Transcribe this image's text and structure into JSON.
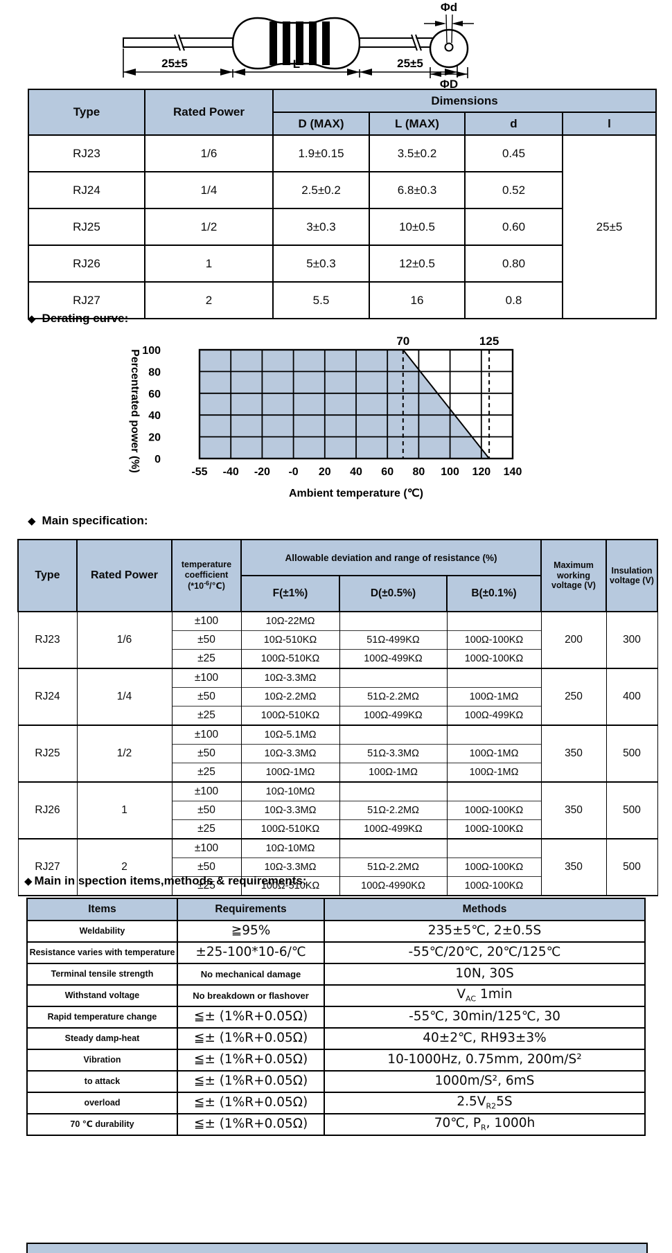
{
  "colors": {
    "header_bg": "#b7c9de",
    "chart_fill": "#b9c9dd",
    "line": "#000000"
  },
  "diagram": {
    "dim_left": "25±5",
    "dim_body": "L",
    "dim_right": "25±5",
    "phi_d": "Φd",
    "phi_D": "ΦD"
  },
  "dimensions_table": {
    "headers": {
      "type": "Type",
      "rated_power": "Rated Power",
      "dimensions": "Dimensions",
      "d_max": "D (MAX)",
      "l_max": "L (MAX)",
      "d": "d",
      "l": "l"
    },
    "rows": [
      {
        "type": "RJ23",
        "power": "1/6",
        "d_max": "1.9±0.15",
        "l_max": "3.5±0.2",
        "d": "0.45"
      },
      {
        "type": "RJ24",
        "power": "1/4",
        "d_max": "2.5±0.2",
        "l_max": "6.8±0.3",
        "d": "0.52"
      },
      {
        "type": "RJ25",
        "power": "1/2",
        "d_max": "3±0.3",
        "l_max": "10±0.5",
        "d": "0.60"
      },
      {
        "type": "RJ26",
        "power": "1",
        "d_max": "5±0.3",
        "l_max": "12±0.5",
        "d": "0.80"
      },
      {
        "type": "RJ27",
        "power": "2",
        "d_max": "5.5",
        "l_max": "16",
        "d": "0.8"
      }
    ],
    "lead_length": "25±5"
  },
  "derating": {
    "bullet": "◆",
    "heading": "Derating curve:",
    "chart_data": {
      "type": "area",
      "xlabel": "Ambient temperature (℃)",
      "ylabel": "Percentrated power (%)",
      "x_tick_labels": [
        "-55",
        "-40",
        "-20",
        "-0",
        "20",
        "40",
        "60",
        "80",
        "100",
        "120",
        "140"
      ],
      "x_tick_values": [
        -55,
        -40,
        -20,
        0,
        20,
        40,
        60,
        80,
        100,
        120,
        140
      ],
      "y_ticks": [
        0,
        20,
        40,
        60,
        80,
        100
      ],
      "ylim": [
        0,
        100
      ],
      "grid": true,
      "fill_color": "#b9c9dd",
      "series": [
        {
          "name": "derating-limit",
          "points": [
            [
              -55,
              100
            ],
            [
              70,
              100
            ],
            [
              125,
              0
            ]
          ]
        }
      ],
      "annotations": [
        {
          "x": 70,
          "label": "70"
        },
        {
          "x": 125,
          "label": "125"
        }
      ]
    }
  },
  "spec": {
    "bullet": "◆",
    "heading": "Main specification:",
    "headers": {
      "type": "Type",
      "rated_power": "Rated Power",
      "tc_line1": "temperature",
      "tc_line2": "coefficient",
      "tc_base": "(*10",
      "tc_sup": "-6",
      "tc_tail": "/℃)",
      "deviation": "Allowable deviation and range of resistance (%)",
      "f": "F(±1%)",
      "d": "D(±0.5%)",
      "b": "B(±0.1%)",
      "max_v": "Maximum working voltage (V)",
      "insulation": "Insulation voltage (V)"
    },
    "groups": [
      {
        "type": "RJ23",
        "power": "1/6",
        "max_v": "200",
        "insulation": "300",
        "rows": [
          {
            "tc": "±100",
            "f": "10Ω-22MΩ",
            "d": "",
            "b": ""
          },
          {
            "tc": "±50",
            "f": "10Ω-510KΩ",
            "d": "51Ω-499KΩ",
            "b": "100Ω-100KΩ"
          },
          {
            "tc": "±25",
            "f": "100Ω-510KΩ",
            "d": "100Ω-499KΩ",
            "b": "100Ω-100KΩ"
          }
        ]
      },
      {
        "type": "RJ24",
        "power": "1/4",
        "max_v": "250",
        "insulation": "400",
        "rows": [
          {
            "tc": "±100",
            "f": "10Ω-3.3MΩ",
            "d": "",
            "b": ""
          },
          {
            "tc": "±50",
            "f": "10Ω-2.2MΩ",
            "d": "51Ω-2.2MΩ",
            "b": "100Ω-1MΩ"
          },
          {
            "tc": "±25",
            "f": "100Ω-510KΩ",
            "d": "100Ω-499KΩ",
            "b": "100Ω-499KΩ"
          }
        ]
      },
      {
        "type": "RJ25",
        "power": "1/2",
        "max_v": "350",
        "insulation": "500",
        "rows": [
          {
            "tc": "±100",
            "f": "10Ω-5.1MΩ",
            "d": "",
            "b": ""
          },
          {
            "tc": "±50",
            "f": "10Ω-3.3MΩ",
            "d": "51Ω-3.3MΩ",
            "b": "100Ω-1MΩ"
          },
          {
            "tc": "±25",
            "f": "100Ω-1MΩ",
            "d": "100Ω-1MΩ",
            "b": "100Ω-1MΩ"
          }
        ]
      },
      {
        "type": "RJ26",
        "power": "1",
        "max_v": "350",
        "insulation": "500",
        "rows": [
          {
            "tc": "±100",
            "f": "10Ω-10MΩ",
            "d": "",
            "b": ""
          },
          {
            "tc": "±50",
            "f": "10Ω-3.3MΩ",
            "d": "51Ω-2.2MΩ",
            "b": "100Ω-100KΩ"
          },
          {
            "tc": "±25",
            "f": "100Ω-510KΩ",
            "d": "100Ω-499KΩ",
            "b": "100Ω-100KΩ"
          }
        ]
      },
      {
        "type": "RJ27",
        "power": "2",
        "max_v": "350",
        "insulation": "500",
        "rows": [
          {
            "tc": "±100",
            "f": "10Ω-10MΩ",
            "d": "",
            "b": ""
          },
          {
            "tc": "±50",
            "f": "10Ω-3.3MΩ",
            "d": "51Ω-2.2MΩ",
            "b": "100Ω-100KΩ"
          },
          {
            "tc": "±25",
            "f": "100Ω-510KΩ",
            "d": "100Ω-4990KΩ",
            "b": "100Ω-100KΩ"
          }
        ]
      }
    ]
  },
  "inspection": {
    "bullet": "◆",
    "heading": "Main in spection items,methods & requirements:",
    "headers": {
      "items": "Items",
      "requirements": "Requirements",
      "methods": "Methods"
    },
    "rows": [
      {
        "item": "Weldability",
        "req": "≧95%",
        "req_style": "big",
        "methods": [
          {
            "text": "235±5℃, 2±0.5S"
          }
        ]
      },
      {
        "item": "Resistance varies with temperature",
        "req": "±25-100*10-6/℃",
        "req_style": "big",
        "methods": [
          {
            "text": "-55℃/20℃, 20℃/125℃"
          }
        ]
      },
      {
        "item": "Terminal tensile strength",
        "req": "No mechanical damage",
        "req_style": "note",
        "methods": [
          {
            "text": "10N, 30S"
          }
        ]
      },
      {
        "item": "Withstand voltage",
        "req": "No breakdown or flashover",
        "req_style": "note",
        "methods": [
          {
            "text": "V"
          },
          {
            "text": "AC",
            "sub": true
          },
          {
            "text": " 1min"
          }
        ]
      },
      {
        "item": "Rapid temperature change",
        "req": "≦± (1%R+0.05Ω)",
        "req_style": "big",
        "methods": [
          {
            "text": "-55℃, 30min/125℃, 30"
          }
        ]
      },
      {
        "item": "Steady damp-heat",
        "req": "≦± (1%R+0.05Ω)",
        "req_style": "big",
        "methods": [
          {
            "text": "40±2℃, RH93±3%"
          }
        ]
      },
      {
        "item": "Vibration",
        "req": "≦± (1%R+0.05Ω)",
        "req_style": "big",
        "methods": [
          {
            "text": "10-1000Hz, 0.75mm, 200m/S²"
          }
        ]
      },
      {
        "item": "to attack",
        "req": "≦± (1%R+0.05Ω)",
        "req_style": "big",
        "methods": [
          {
            "text": "1000m/S², 6mS"
          }
        ]
      },
      {
        "item": "overload",
        "req": "≦± (1%R+0.05Ω)",
        "req_style": "big",
        "methods": [
          {
            "text": "2.5V"
          },
          {
            "text": "R2",
            "sub": true
          },
          {
            "text": "5S"
          }
        ]
      },
      {
        "item": "70 ℃ durability",
        "req": "≦± (1%R+0.05Ω)",
        "req_style": "big",
        "methods": [
          {
            "text": "70℃, P"
          },
          {
            "text": "R",
            "sub": true
          },
          {
            "text": ", 1000h"
          }
        ]
      }
    ]
  }
}
